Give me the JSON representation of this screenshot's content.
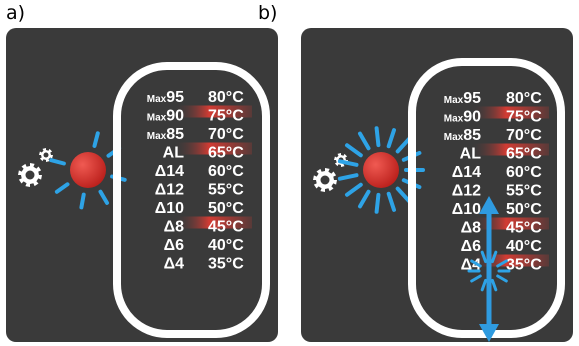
{
  "panels": [
    {
      "label": "a)",
      "rows": [
        {
          "prefix": "Max",
          "value": "95",
          "temp": "80°C",
          "highlight": false
        },
        {
          "prefix": "Max",
          "value": "90",
          "temp": "75°C",
          "highlight": true
        },
        {
          "prefix": "Max",
          "value": "85",
          "temp": "70°C",
          "highlight": false
        },
        {
          "prefix": "",
          "value": "AL",
          "temp": "65°C",
          "highlight": true
        },
        {
          "prefix": "",
          "value": "Δ14",
          "temp": "60°C",
          "highlight": false
        },
        {
          "prefix": "",
          "value": "Δ12",
          "temp": "55°C",
          "highlight": false
        },
        {
          "prefix": "",
          "value": "Δ10",
          "temp": "50°C",
          "highlight": false
        },
        {
          "prefix": "",
          "value": "Δ8",
          "temp": "45°C",
          "highlight": true
        },
        {
          "prefix": "",
          "value": "Δ6",
          "temp": "40°C",
          "highlight": false
        },
        {
          "prefix": "",
          "value": "Δ4",
          "temp": "35°C",
          "highlight": false
        }
      ]
    },
    {
      "label": "b)",
      "rows": [
        {
          "prefix": "Max",
          "value": "95",
          "temp": "80°C",
          "highlight": false
        },
        {
          "prefix": "Max",
          "value": "90",
          "temp": "75°C",
          "highlight": true
        },
        {
          "prefix": "Max",
          "value": "85",
          "temp": "70°C",
          "highlight": false
        },
        {
          "prefix": "",
          "value": "AL",
          "temp": "65°C",
          "highlight": true
        },
        {
          "prefix": "",
          "value": "Δ14",
          "temp": "60°C",
          "highlight": false
        },
        {
          "prefix": "",
          "value": "Δ12",
          "temp": "55°C",
          "highlight": false
        },
        {
          "prefix": "",
          "value": "Δ10",
          "temp": "50°C",
          "highlight": false
        },
        {
          "prefix": "",
          "value": "Δ8",
          "temp": "45°C",
          "highlight": true
        },
        {
          "prefix": "",
          "value": "Δ6",
          "temp": "40°C",
          "highlight": false
        },
        {
          "prefix": "",
          "value": "Δ4",
          "temp": "35°C",
          "highlight": true
        }
      ]
    }
  ],
  "colors": {
    "panel_bg": "#3a3a3a",
    "frame": "#ffffff",
    "led": "#e0302a",
    "rays": "#2ea3e6",
    "highlight": "#d23b33",
    "arrows": "#2f9be0"
  }
}
